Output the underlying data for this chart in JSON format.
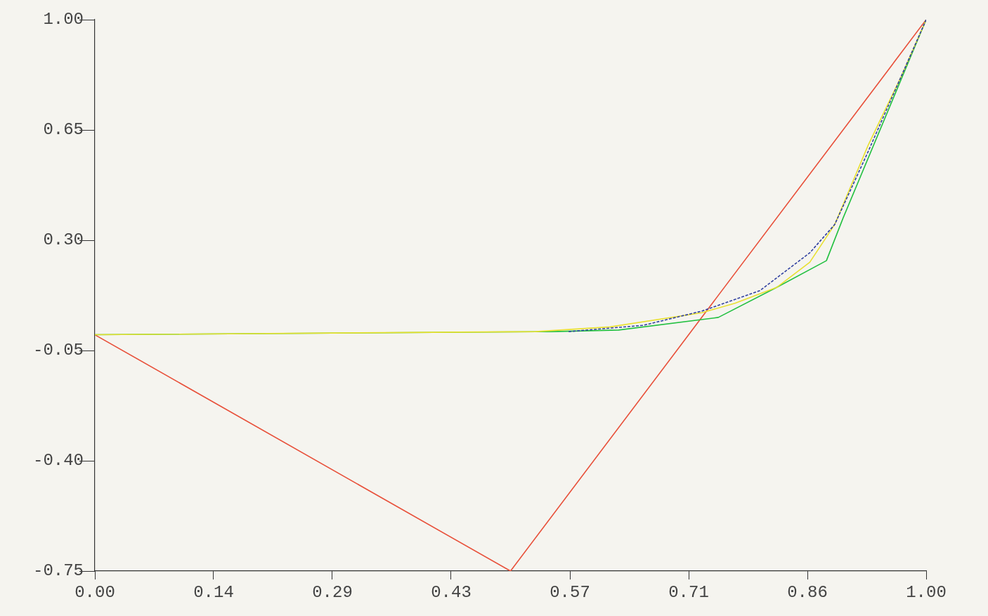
{
  "chart_data": {
    "type": "line",
    "xlim": [
      0,
      1
    ],
    "ylim": [
      -0.75,
      1
    ],
    "xticks": [
      {
        "value": 0,
        "label": "0.00"
      },
      {
        "value": 0.142857,
        "label": "0.14"
      },
      {
        "value": 0.285714,
        "label": "0.29"
      },
      {
        "value": 0.428571,
        "label": "0.43"
      },
      {
        "value": 0.571429,
        "label": "0.57"
      },
      {
        "value": 0.714286,
        "label": "0.71"
      },
      {
        "value": 0.857143,
        "label": "0.86"
      },
      {
        "value": 1,
        "label": "1.00"
      }
    ],
    "yticks": [
      {
        "value": -0.75,
        "label": "-0.75"
      },
      {
        "value": -0.4,
        "label": "-0.40"
      },
      {
        "value": -0.05,
        "label": "-0.05"
      },
      {
        "value": 0.3,
        "label": "0.30"
      },
      {
        "value": 0.65,
        "label": "0.65"
      },
      {
        "value": 1,
        "label": "1.00"
      }
    ],
    "grid": false,
    "legend": false,
    "marker": "none",
    "series": [
      {
        "color": "#e8503a",
        "x": [
          0,
          0.5,
          1
        ],
        "values": [
          0,
          -0.75,
          1
        ]
      },
      {
        "color": "#22c040",
        "x": [
          0,
          0.55,
          0.63,
          0.75,
          0.82,
          0.88,
          0.9,
          1
        ],
        "values": [
          0,
          0.01,
          0.015,
          0.055,
          0.15,
          0.235,
          0.37,
          1
        ]
      },
      {
        "color": "#e8e030",
        "x": [
          0,
          0.53,
          0.62,
          0.73,
          0.77,
          0.82,
          0.86,
          0.89,
          0.93,
          0.97,
          1
        ],
        "values": [
          0,
          0.01,
          0.025,
          0.07,
          0.1,
          0.15,
          0.23,
          0.35,
          0.6,
          0.82,
          1
        ]
      },
      {
        "color": "#3040a0",
        "line_style": "dashed",
        "x": [
          0.57,
          0.66,
          0.73,
          0.8,
          0.86,
          0.89,
          0.93,
          0.97,
          1
        ],
        "values": [
          0.01,
          0.03,
          0.075,
          0.14,
          0.26,
          0.35,
          0.58,
          0.82,
          1
        ]
      }
    ]
  }
}
